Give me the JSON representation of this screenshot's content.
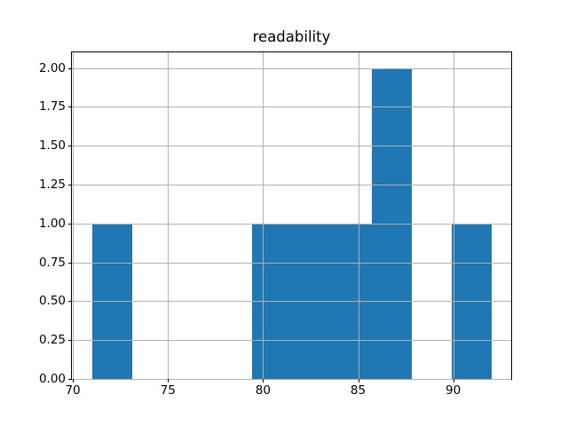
{
  "chart_data": {
    "type": "histogram",
    "title": "readability",
    "bin_edges": [
      71.0,
      73.1,
      75.2,
      77.3,
      79.4,
      81.5,
      83.6,
      85.7,
      87.8,
      89.9,
      92.0
    ],
    "counts": [
      1,
      0,
      0,
      0,
      1,
      1,
      1,
      2,
      0,
      1
    ],
    "xlim": [
      69.95,
      93.05
    ],
    "ylim": [
      0,
      2.1
    ],
    "xticks": {
      "values": [
        70,
        75,
        80,
        85,
        90
      ],
      "labels": [
        "70",
        "75",
        "80",
        "85",
        "90"
      ]
    },
    "yticks": {
      "values": [
        0.0,
        0.25,
        0.5,
        0.75,
        1.0,
        1.25,
        1.5,
        1.75,
        2.0
      ],
      "labels": [
        "0.00",
        "0.25",
        "0.50",
        "0.75",
        "1.00",
        "1.25",
        "1.50",
        "1.75",
        "2.00"
      ]
    },
    "grid": true,
    "grid_over_bars": true,
    "legend": false,
    "xlabel": "",
    "ylabel": "",
    "bar_color": "#1f77b4",
    "grid_color": "#b0b0b0",
    "spine_color": "#000000",
    "background": "#ffffff"
  }
}
